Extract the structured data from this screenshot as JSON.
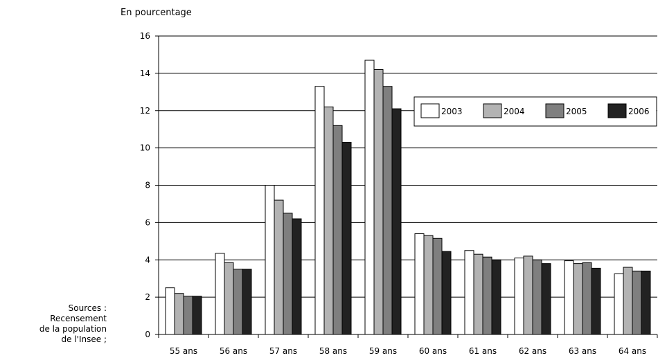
{
  "chart_data": {
    "type": "bar",
    "title": "",
    "ylabel": "En pourcentage",
    "xlabel": "",
    "ylim": [
      0,
      16
    ],
    "yticks": [
      0,
      2,
      4,
      6,
      8,
      10,
      12,
      14,
      16
    ],
    "grid": true,
    "legend_position": "top-right",
    "categories": [
      "55 ans",
      "56 ans",
      "57 ans",
      "58 ans",
      "59 ans",
      "60 ans",
      "61 ans",
      "62 ans",
      "63 ans",
      "64 ans"
    ],
    "series": [
      {
        "name": "2003",
        "color": "#ffffff",
        "values": [
          2.5,
          4.35,
          8.0,
          13.3,
          14.7,
          5.4,
          4.5,
          4.1,
          3.95,
          3.25
        ]
      },
      {
        "name": "2004",
        "color": "#b3b3b3",
        "values": [
          2.2,
          3.85,
          7.2,
          12.2,
          14.2,
          5.3,
          4.3,
          4.2,
          3.8,
          3.6
        ]
      },
      {
        "name": "2005",
        "color": "#7f7f7f",
        "values": [
          2.05,
          3.5,
          6.5,
          11.2,
          13.3,
          5.15,
          4.15,
          4.0,
          3.85,
          3.4
        ]
      },
      {
        "name": "2006",
        "color": "#222222",
        "values": [
          2.05,
          3.5,
          6.2,
          10.3,
          12.1,
          4.45,
          4.0,
          3.8,
          3.55,
          3.4
        ]
      }
    ]
  },
  "sources": {
    "line1": "Sources :",
    "line2": "Recensement",
    "line3": "de la population",
    "line4": "de l'Insee ;"
  }
}
